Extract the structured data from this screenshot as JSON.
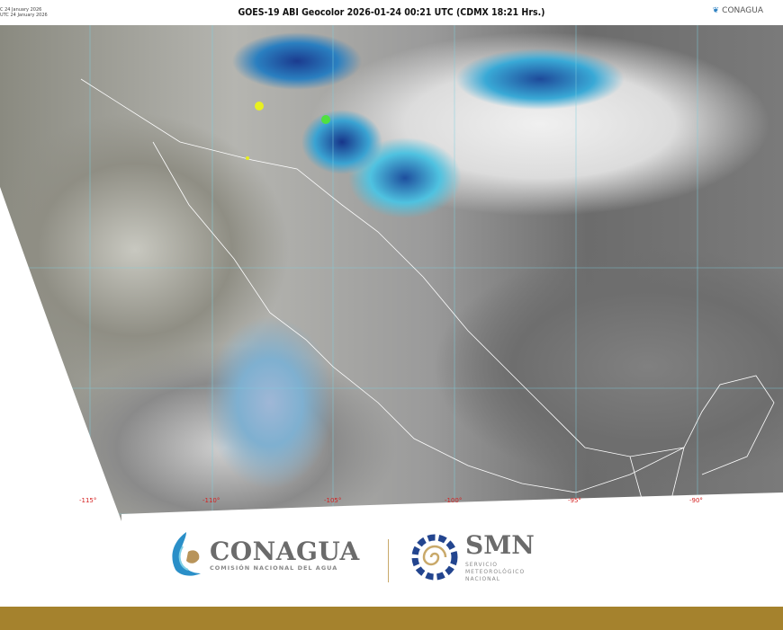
{
  "header": {
    "timestamp_lines": [
      "C 24 January 2026",
      "UTC 24 January 2026"
    ],
    "title": "GOES-19 ABI Geocolor 2026-01-24 00:21 UTC (CDMX  18:21 Hrs.)",
    "logo_text": "CONAGUA"
  },
  "map": {
    "longitude_labels": [
      "-115°",
      "-110°",
      "-105°",
      "-100°",
      "-95°",
      "-90°"
    ],
    "colors": {
      "grid": "#7fd0e0",
      "borders": "#ffffff",
      "labels": "#d42020",
      "cold_cloud_tops": "#1b3b8f"
    }
  },
  "footer": {
    "conagua": {
      "name": "CONAGUA",
      "subtitle": "COMISIÓN NACIONAL DEL AGUA"
    },
    "smn": {
      "name": "SMN",
      "subtitle_lines": [
        "SERVICIO",
        "METEOROLÓGICO",
        "NACIONAL"
      ]
    },
    "band_color": "#a5822d"
  }
}
